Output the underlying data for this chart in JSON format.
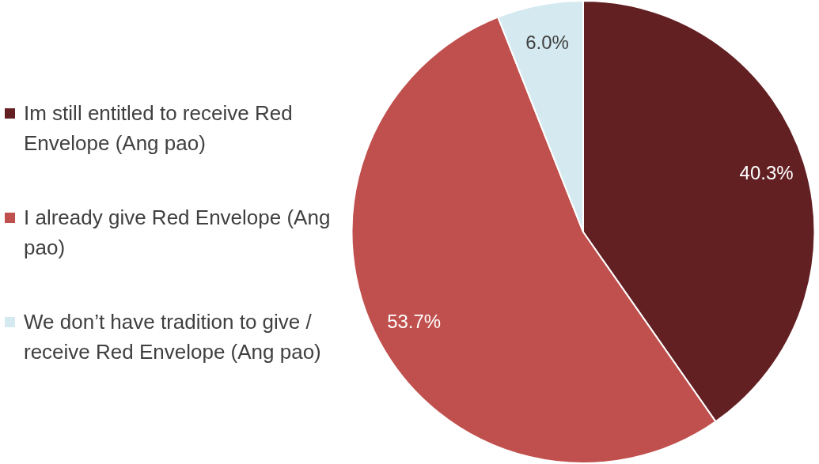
{
  "chart_data": {
    "type": "pie",
    "categories": [
      "Im still entitled to receive Red Envelope (Ang pao)",
      "I already give Red Envelope (Ang pao)",
      "We don’t have tradition to give / receive Red Envelope (Ang pao)"
    ],
    "values": [
      40.3,
      53.7,
      6.0
    ],
    "colors": [
      "#632023",
      "#c0504d",
      "#d4eaf0"
    ],
    "value_labels": [
      "40.3%",
      "53.7%",
      "6.0%"
    ],
    "legend": "left"
  }
}
